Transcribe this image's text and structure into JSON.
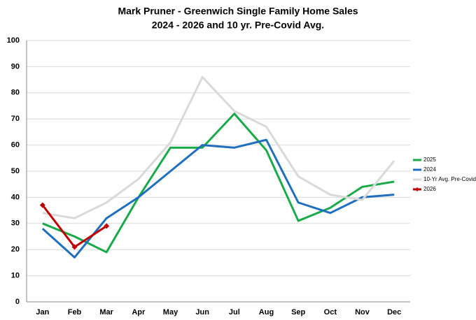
{
  "chart_data": {
    "type": "line",
    "title": "Mark Pruner - Greenwich Single Family Home Sales",
    "subtitle": "2024 - 2026 and 10 yr. Pre-Covid Avg.",
    "categories": [
      "Jan",
      "Feb",
      "Mar",
      "Apr",
      "May",
      "Jun",
      "Jul",
      "Aug",
      "Sep",
      "Oct",
      "Nov",
      "Dec"
    ],
    "series": [
      {
        "name": "2025",
        "color": "#1aaa4a",
        "values": [
          30,
          25,
          19,
          40,
          59,
          59,
          72,
          58,
          31,
          36,
          44,
          46
        ]
      },
      {
        "name": "2024",
        "color": "#1f6fbf",
        "values": [
          28,
          17,
          32,
          40,
          50,
          60,
          59,
          62,
          38,
          34,
          40,
          41
        ]
      },
      {
        "name": "10-Yr Avg. Pre-Covid",
        "color": "#d9d9d9",
        "values": [
          34,
          32,
          38,
          47,
          61,
          86,
          73,
          67,
          48,
          41,
          39,
          54
        ]
      },
      {
        "name": "2026",
        "color": "#c00000",
        "marker": "diamond",
        "values": [
          37,
          21,
          29,
          null,
          null,
          null,
          null,
          null,
          null,
          null,
          null,
          null
        ]
      }
    ],
    "ylim": [
      0,
      100
    ],
    "yticks": [
      0,
      10,
      20,
      30,
      40,
      50,
      60,
      70,
      80,
      90,
      100
    ],
    "grid": true,
    "legend": "right"
  }
}
